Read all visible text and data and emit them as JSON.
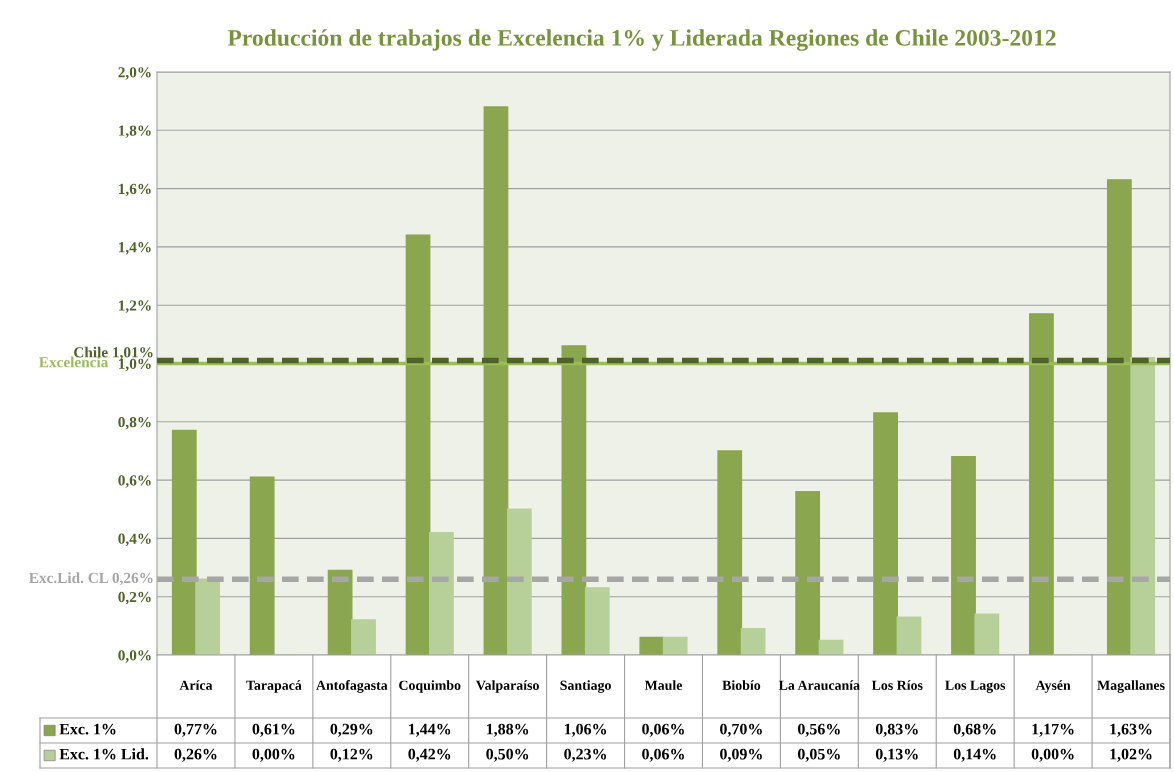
{
  "chart_data": {
    "type": "bar",
    "title": "Producción de trabajos de Excelencia 1% y Liderada Regiones de Chile 2003-2012",
    "categories": [
      "Aríca",
      "Tarapacá",
      "Antofagasta",
      "Coquimbo",
      "Valparaíso",
      "Santiago",
      "Maule",
      "Biobío",
      "La Araucanía",
      "Los Ríos",
      "Los Lagos",
      "Aysén",
      "Magallanes"
    ],
    "series": [
      {
        "name": "Exc. 1%",
        "color": "#8aa64e",
        "values": [
          0.77,
          0.61,
          0.29,
          1.44,
          1.88,
          1.06,
          0.06,
          0.7,
          0.56,
          0.83,
          0.68,
          1.17,
          1.63
        ],
        "value_labels": [
          "0,77%",
          "0,61%",
          "0,29%",
          "1,44%",
          "1,88%",
          "1,06%",
          "0,06%",
          "0,70%",
          "0,56%",
          "0,83%",
          "0,68%",
          "1,17%",
          "1,63%"
        ]
      },
      {
        "name": "Exc. 1% Lid.",
        "color": "#b7d09a",
        "values": [
          0.26,
          0.0,
          0.12,
          0.42,
          0.5,
          0.23,
          0.06,
          0.09,
          0.05,
          0.13,
          0.14,
          0.0,
          1.02
        ],
        "value_labels": [
          "0,26%",
          "0,00%",
          "0,12%",
          "0,42%",
          "0,50%",
          "0,23%",
          "0,06%",
          "0,09%",
          "0,05%",
          "0,13%",
          "0,14%",
          "0,00%",
          "1,02%"
        ]
      }
    ],
    "ylim": [
      0,
      2.0
    ],
    "yticks": [
      {
        "value": 0,
        "label": "0,0%"
      },
      {
        "value": 0.2,
        "label": "0,2%"
      },
      {
        "value": 0.4,
        "label": "0,4%"
      },
      {
        "value": 0.6,
        "label": "0,6%"
      },
      {
        "value": 0.8,
        "label": "0,8%"
      },
      {
        "value": 1.0,
        "label": "1,0%"
      },
      {
        "value": 1.2,
        "label": "1,2%"
      },
      {
        "value": 1.4,
        "label": "1,4%"
      },
      {
        "value": 1.6,
        "label": "1,6%"
      },
      {
        "value": 1.8,
        "label": "1,8%"
      },
      {
        "value": 2.0,
        "label": "2,0%"
      }
    ],
    "ref_lines": [
      {
        "axis": "y",
        "value": 1.0,
        "label": "Excelencia",
        "color": "#9bbb59",
        "line_style": "solid"
      },
      {
        "axis": "y",
        "value": 1.01,
        "label": "Chile 1,01%",
        "color": "#4f6228",
        "line_style": "dashed"
      },
      {
        "axis": "y",
        "value": 0.26,
        "label": "Exc.Lid. CL 0,26%",
        "color": "#a6a6a6",
        "line_style": "dashed"
      }
    ],
    "grid": "y",
    "legend": "bottom"
  }
}
